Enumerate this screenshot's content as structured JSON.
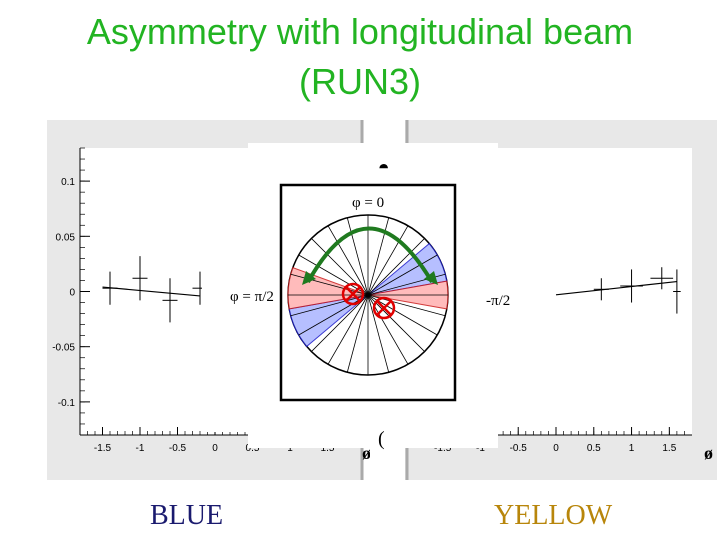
{
  "slide": {
    "title_line1": "Asymmetry with longitudinal beam",
    "title_line2": "(RUN3)",
    "caption_left": "BLUE",
    "caption_right": "YELLOW",
    "colors": {
      "title": "#22b422",
      "blue_caption": "#1a1a6e",
      "yellow_caption": "#b8860b"
    }
  },
  "diagram": {
    "label_top": "φ = 0",
    "label_left": "φ = π/2",
    "label_right": "-π/2",
    "icons": [
      "detector-wheel-icon",
      "beam-cross-icon",
      "green-arc-arrow-icon"
    ]
  },
  "chart_data": [
    {
      "type": "scatter",
      "name": "BLUE",
      "xlim": [
        -1.8,
        1.8
      ],
      "ylim": [
        -0.13,
        0.13
      ],
      "xticks": [
        "-1.5",
        "-1",
        "-0.5",
        "0",
        "0.5",
        "1",
        "1.5"
      ],
      "yticks": [
        "0.1",
        "0.05",
        "0",
        "-0.05",
        "-0.1"
      ],
      "xlabel": "ø",
      "grid": false,
      "points": [
        {
          "x": -1.4,
          "y": 0.003,
          "yerr": 0.015,
          "xerr": 0.1
        },
        {
          "x": -1.0,
          "y": 0.012,
          "yerr": 0.02,
          "xerr": 0.1
        },
        {
          "x": -0.6,
          "y": -0.008,
          "yerr": 0.02,
          "xerr": 0.1
        },
        {
          "x": -0.2,
          "y": 0.003,
          "yerr": 0.015,
          "xerr": 0.1
        }
      ],
      "fit": {
        "x": [
          -1.5,
          -0.2
        ],
        "y": [
          0.004,
          -0.004
        ]
      }
    },
    {
      "type": "scatter",
      "name": "YELLOW",
      "xlim": [
        -1.8,
        1.8
      ],
      "ylim": [
        -0.13,
        0.13
      ],
      "xticks": [
        "-1.5",
        "-1",
        "-0.5",
        "0",
        "0.5",
        "1",
        "1.5"
      ],
      "xlabel": "ø",
      "grid": false,
      "points": [
        {
          "x": 0.6,
          "y": 0.002,
          "yerr": 0.01,
          "xerr": 0.1
        },
        {
          "x": 1.0,
          "y": 0.005,
          "yerr": 0.015,
          "xerr": 0.15
        },
        {
          "x": 1.4,
          "y": 0.012,
          "yerr": 0.01,
          "xerr": 0.15
        },
        {
          "x": 1.6,
          "y": 0.0,
          "yerr": 0.02,
          "xerr": 0.05
        }
      ],
      "fit": {
        "x": [
          0.0,
          1.6
        ],
        "y": [
          -0.003,
          0.009
        ]
      }
    }
  ]
}
